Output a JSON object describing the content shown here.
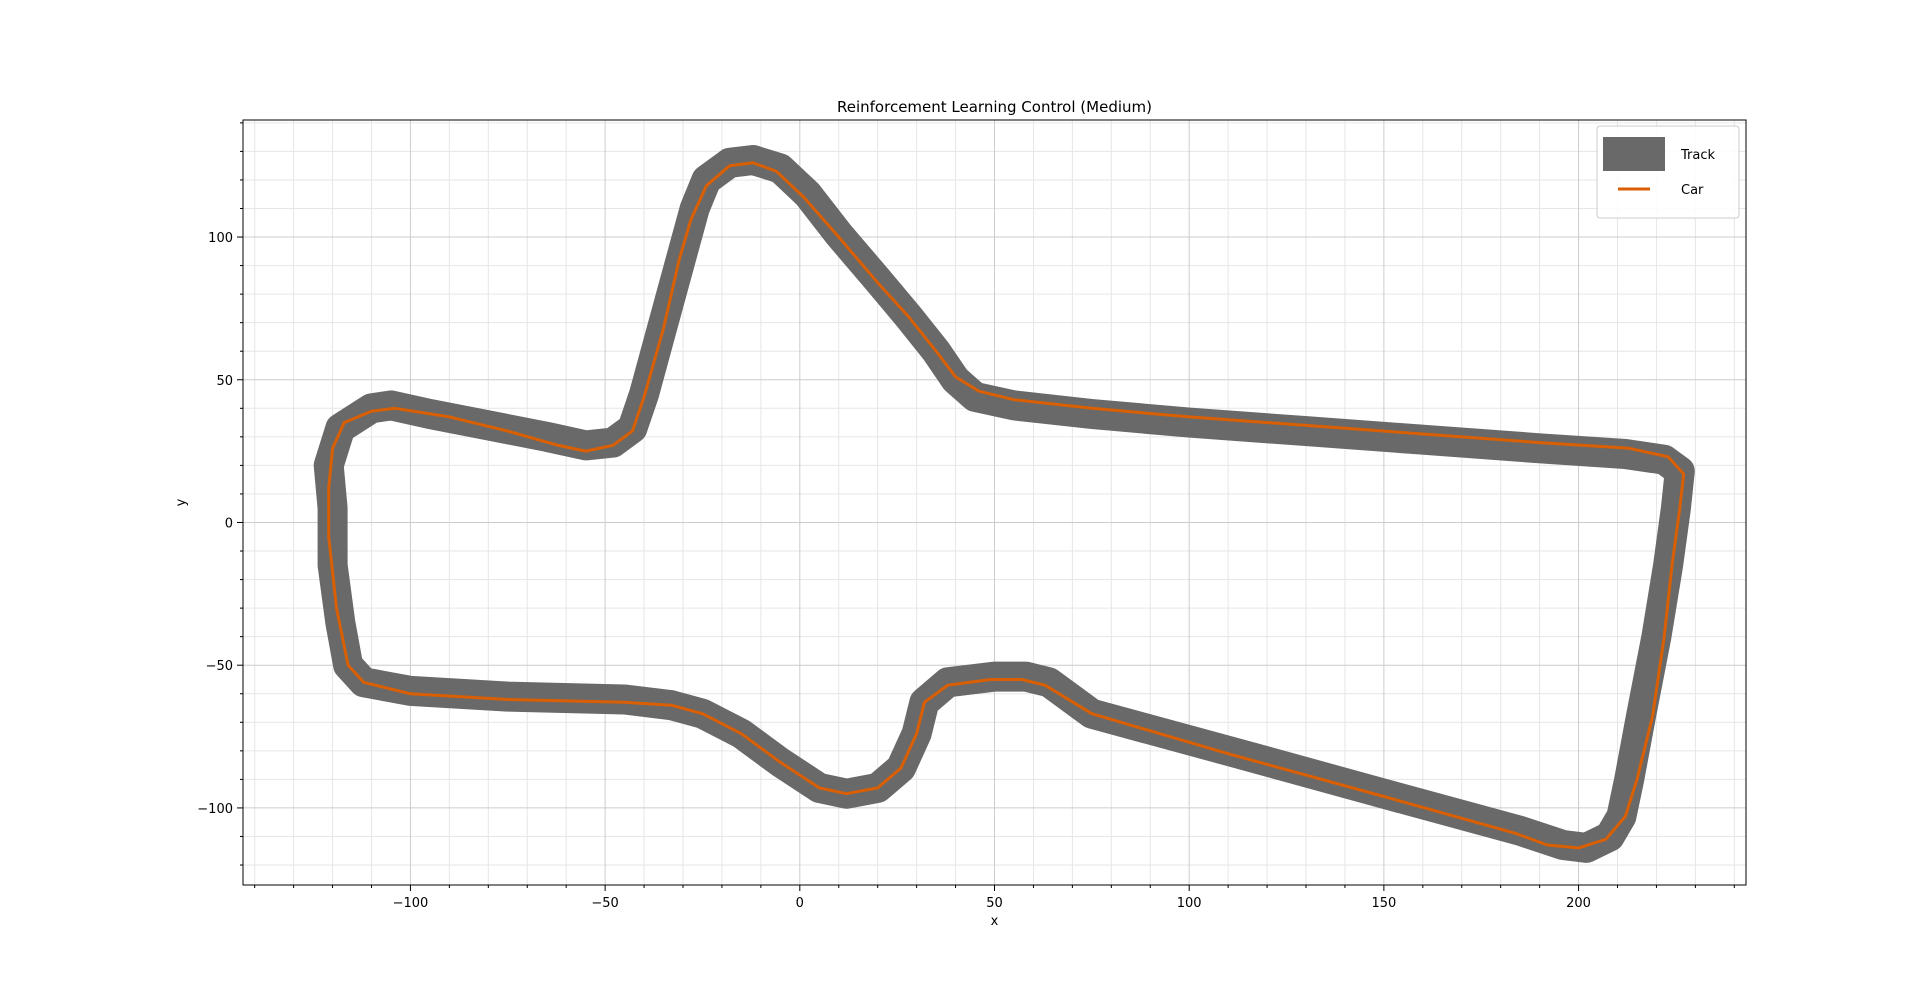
{
  "chart_data": {
    "type": "line",
    "title": "Reinforcement Learning Control (Medium)",
    "xlabel": "x",
    "ylabel": "y",
    "xlim": [
      -143,
      243
    ],
    "ylim": [
      -127,
      141
    ],
    "xticks": [
      -100,
      -50,
      0,
      50,
      100,
      150,
      200
    ],
    "yticks": [
      -100,
      -50,
      0,
      50,
      100
    ],
    "xtick_labels": [
      "−100",
      "−50",
      "0",
      "50",
      "100",
      "150",
      "200"
    ],
    "ytick_labels": [
      "−100",
      "−50",
      "0",
      "50",
      "100"
    ],
    "grid": "major+minor",
    "legend_position": "upper right",
    "colors": {
      "track": "#696969",
      "car": "#d95f02",
      "grid_major": "#cccccc",
      "grid_minor": "#e6e6e6"
    },
    "series": [
      {
        "name": "Track",
        "points": [
          [
            -120,
            5
          ],
          [
            -121,
            20
          ],
          [
            -118,
            33
          ],
          [
            -110,
            40
          ],
          [
            -105,
            41
          ],
          [
            -95,
            38
          ],
          [
            -80,
            34
          ],
          [
            -65,
            30
          ],
          [
            -55,
            27
          ],
          [
            -48,
            28
          ],
          [
            -43,
            33
          ],
          [
            -40,
            45
          ],
          [
            -35,
            70
          ],
          [
            -30,
            95
          ],
          [
            -27,
            110
          ],
          [
            -24,
            120
          ],
          [
            -18,
            126
          ],
          [
            -12,
            127
          ],
          [
            -5,
            124
          ],
          [
            2,
            115
          ],
          [
            10,
            101
          ],
          [
            20,
            85
          ],
          [
            28,
            72
          ],
          [
            35,
            60
          ],
          [
            40,
            50
          ],
          [
            45,
            44
          ],
          [
            55,
            41
          ],
          [
            75,
            38
          ],
          [
            100,
            35
          ],
          [
            130,
            32
          ],
          [
            160,
            29
          ],
          [
            190,
            26
          ],
          [
            212,
            24
          ],
          [
            222,
            22
          ],
          [
            226,
            18
          ],
          [
            225,
            5
          ],
          [
            223,
            -15
          ],
          [
            220,
            -40
          ],
          [
            216,
            -68
          ],
          [
            213,
            -90
          ],
          [
            211,
            -103
          ],
          [
            208,
            -110
          ],
          [
            202,
            -114
          ],
          [
            196,
            -113
          ],
          [
            185,
            -108
          ],
          [
            150,
            -95
          ],
          [
            110,
            -80
          ],
          [
            75,
            -67
          ],
          [
            64,
            -56
          ],
          [
            58,
            -54
          ],
          [
            50,
            -54
          ],
          [
            38,
            -56
          ],
          [
            32,
            -63
          ],
          [
            30,
            -74
          ],
          [
            26,
            -86
          ],
          [
            20,
            -93
          ],
          [
            12,
            -95
          ],
          [
            5,
            -93
          ],
          [
            -5,
            -84
          ],
          [
            -15,
            -74
          ],
          [
            -25,
            -67
          ],
          [
            -33,
            -64
          ],
          [
            -45,
            -62
          ],
          [
            -75,
            -61
          ],
          [
            -100,
            -59
          ],
          [
            -112,
            -56
          ],
          [
            -116,
            -50
          ],
          [
            -118,
            -35
          ],
          [
            -120,
            -15
          ],
          [
            -120,
            5
          ]
        ]
      },
      {
        "name": "Car",
        "points": [
          [
            -121,
            12
          ],
          [
            -120,
            26
          ],
          [
            -117,
            35
          ],
          [
            -110,
            39
          ],
          [
            -104,
            40
          ],
          [
            -90,
            37
          ],
          [
            -75,
            32
          ],
          [
            -62,
            27
          ],
          [
            -55,
            25
          ],
          [
            -48,
            27
          ],
          [
            -43,
            32
          ],
          [
            -40,
            44
          ],
          [
            -35,
            68
          ],
          [
            -31,
            92
          ],
          [
            -28,
            106
          ],
          [
            -24,
            118
          ],
          [
            -18,
            125
          ],
          [
            -12,
            126
          ],
          [
            -6,
            123
          ],
          [
            1,
            114
          ],
          [
            10,
            100
          ],
          [
            20,
            84
          ],
          [
            28,
            72
          ],
          [
            35,
            60
          ],
          [
            40,
            51
          ],
          [
            46,
            46
          ],
          [
            55,
            43
          ],
          [
            75,
            40
          ],
          [
            100,
            37
          ],
          [
            130,
            34
          ],
          [
            160,
            31
          ],
          [
            190,
            28
          ],
          [
            213,
            26
          ],
          [
            223,
            23
          ],
          [
            227,
            17
          ],
          [
            226,
            5
          ],
          [
            224,
            -15
          ],
          [
            222,
            -40
          ],
          [
            219,
            -68
          ],
          [
            215,
            -90
          ],
          [
            212,
            -103
          ],
          [
            207,
            -111
          ],
          [
            200,
            -114
          ],
          [
            192,
            -113
          ],
          [
            184,
            -109
          ],
          [
            150,
            -96
          ],
          [
            110,
            -81
          ],
          [
            75,
            -67
          ],
          [
            63,
            -57
          ],
          [
            57,
            -55
          ],
          [
            49,
            -55
          ],
          [
            38,
            -57
          ],
          [
            32,
            -63
          ],
          [
            30,
            -74
          ],
          [
            26,
            -86
          ],
          [
            20,
            -93
          ],
          [
            12,
            -95
          ],
          [
            5,
            -93
          ],
          [
            -5,
            -84
          ],
          [
            -15,
            -74
          ],
          [
            -25,
            -67
          ],
          [
            -33,
            -64
          ],
          [
            -45,
            -63
          ],
          [
            -75,
            -62
          ],
          [
            -100,
            -60
          ],
          [
            -112,
            -56
          ],
          [
            -116,
            -50
          ],
          [
            -119,
            -30
          ],
          [
            -121,
            -5
          ],
          [
            -121,
            12
          ]
        ]
      }
    ]
  }
}
